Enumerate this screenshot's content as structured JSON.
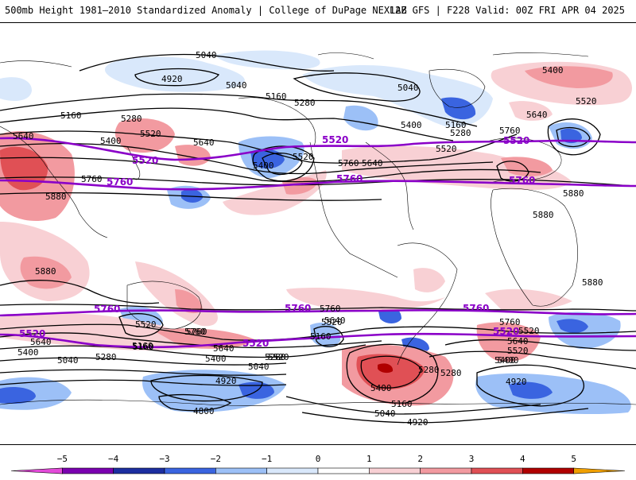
{
  "header": {
    "title_left": "500mb Height 1981–2010 Standardized Anomaly | College of DuPage NEXLAB",
    "title_right": "12Z GFS | F228 Valid: 00Z FRI APR 04 2025"
  },
  "colors": {
    "bg": "#ffffff",
    "contour": "#000000",
    "highlight_contour": "#8a00c8",
    "coast": "#000000"
  },
  "contour_labels": {
    "l5040a": "5040",
    "l4920a": "4920",
    "l5040b": "5040",
    "l5040c": "5040",
    "l5400a": "5400",
    "l5520a": "5520",
    "l5160a": "5160",
    "l5280a": "5280",
    "l5160b": "5160",
    "l5280b": "5280",
    "l5400b": "5400",
    "l5520b": "5520",
    "l5640a": "5640",
    "l5640b": "5640",
    "l5760a": "5760",
    "l5880a": "5880",
    "l5400c": "5400",
    "l5520c": "5520",
    "l5640c": "5640",
    "l5760b": "5760",
    "l5160c": "5160",
    "l5280c": "5280",
    "l5400d": "5400",
    "l5520d": "5520",
    "l5640d": "5640",
    "l5760c": "5760",
    "l5880b": "5880",
    "l5880c": "5880",
    "l5880d": "5880",
    "l5880e": "5880",
    "l5880f": "5880",
    "l5760d": "5760",
    "l5760e": "5760",
    "l5520e": "5520",
    "l5640e": "5640",
    "l5400e": "5400",
    "l5040d": "5040",
    "l5280d": "5280",
    "l5160d": "5160",
    "l5640f": "5640",
    "l5520f": "5520",
    "l5400f": "5400",
    "l5520g": "5520",
    "l5160e": "5160",
    "l5280e": "5280",
    "l5400g": "5400",
    "l5040e": "5040",
    "l4920b": "4920",
    "l4800a": "4800",
    "l5040f": "5040",
    "l4920c": "4920",
    "l5160f": "5160",
    "l5280f": "5280",
    "l5400h": "5400",
    "l5520h": "5520",
    "l5640g": "5640",
    "l5760f": "5760",
    "l5760g": "5760",
    "l5640h": "5640",
    "l5520i": "5520",
    "l5400i": "5400",
    "l4920d": "4920",
    "l5160g": "5160",
    "l5280g": "5280"
  },
  "highlight_labels": {
    "p5520a": "5520",
    "p5760a": "5760",
    "p5520b": "5520",
    "p5760b": "5760",
    "p5520c": "5520",
    "p5760c": "5760",
    "p5760d": "5760",
    "p5520d": "5520",
    "p5520e": "5520",
    "p5760e": "5760",
    "p5760f": "5760",
    "p5520f": "5520"
  },
  "colorbar": {
    "ticks": [
      "−5",
      "−4",
      "−3",
      "−2",
      "−1",
      "0",
      "1",
      "2",
      "3",
      "4",
      "5"
    ],
    "colors": [
      "#e34ad9",
      "#7a00b0",
      "#1c2ea0",
      "#3a64e0",
      "#9cc0f7",
      "#d9e8fb",
      "#ffffff",
      "#f8d0d4",
      "#f29aa0",
      "#e05055",
      "#b00000",
      "#f0a000"
    ]
  }
}
